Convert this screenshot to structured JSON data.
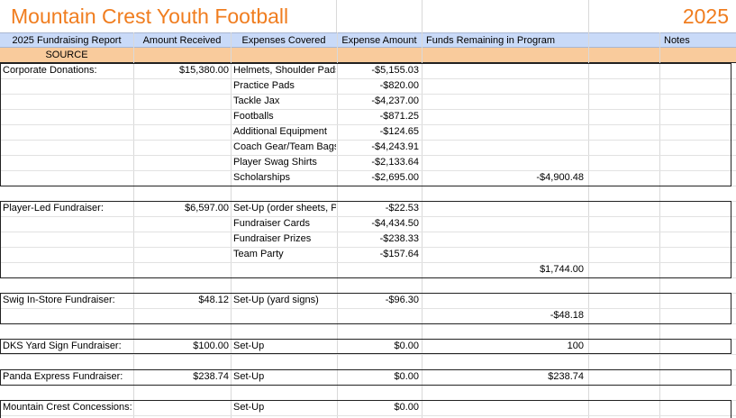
{
  "title": "Mountain Crest Youth Football",
  "year": "2025",
  "headers": {
    "report": "2025 Fundraising Report",
    "received": "Amount Received",
    "expenses": "Expenses Covered",
    "expense_amount": "Expense Amount",
    "remaining": "Funds Remaining in Program",
    "notes": "Notes"
  },
  "source_label": "SOURCE",
  "rows": [
    {
      "source": "Corporate Donations:",
      "received": "$15,380.00",
      "expense": "Helmets, Shoulder Pads",
      "amount": "-$5,155.03",
      "remaining": ""
    },
    {
      "source": "",
      "received": "",
      "expense": "Practice Pads",
      "amount": "-$820.00",
      "remaining": ""
    },
    {
      "source": "",
      "received": "",
      "expense": "Tackle Jax",
      "amount": "-$4,237.00",
      "remaining": ""
    },
    {
      "source": "",
      "received": "",
      "expense": "Footballs",
      "amount": "-$871.25",
      "remaining": ""
    },
    {
      "source": "",
      "received": "",
      "expense": "Additional Equipment",
      "amount": "-$124.65",
      "remaining": ""
    },
    {
      "source": "",
      "received": "",
      "expense": "Coach Gear/Team Bags",
      "amount": "-$4,243.91",
      "remaining": ""
    },
    {
      "source": "",
      "received": "",
      "expense": "Player Swag Shirts",
      "amount": "-$2,133.64",
      "remaining": ""
    },
    {
      "source": "",
      "received": "",
      "expense": "Scholarships",
      "amount": "-$2,695.00",
      "remaining": "-$4,900.48"
    },
    {
      "source": "",
      "received": "",
      "expense": "",
      "amount": "",
      "remaining": ""
    },
    {
      "source": "Player-Led Fundraiser:",
      "received": "$6,597.00",
      "expense": "Set-Up (order sheets, Pr",
      "amount": "-$22.53",
      "remaining": ""
    },
    {
      "source": "",
      "received": "",
      "expense": "Fundraiser Cards",
      "amount": "-$4,434.50",
      "remaining": ""
    },
    {
      "source": "",
      "received": "",
      "expense": "Fundraiser Prizes",
      "amount": "-$238.33",
      "remaining": ""
    },
    {
      "source": "",
      "received": "",
      "expense": "Team Party",
      "amount": "-$157.64",
      "remaining": ""
    },
    {
      "source": "",
      "received": "",
      "expense": "",
      "amount": "",
      "remaining": "$1,744.00"
    },
    {
      "source": "",
      "received": "",
      "expense": "",
      "amount": "",
      "remaining": ""
    },
    {
      "source": "Swig In-Store Fundraiser:",
      "received": "$48.12",
      "expense": "Set-Up (yard signs)",
      "amount": "-$96.30",
      "remaining": ""
    },
    {
      "source": "",
      "received": "",
      "expense": "",
      "amount": "",
      "remaining": "-$48.18"
    },
    {
      "source": "",
      "received": "",
      "expense": "",
      "amount": "",
      "remaining": ""
    },
    {
      "source": "DKS Yard Sign Fundraiser:",
      "received": "$100.00",
      "expense": "Set-Up",
      "amount": "$0.00",
      "remaining": "100"
    },
    {
      "source": "",
      "received": "",
      "expense": "",
      "amount": "",
      "remaining": ""
    },
    {
      "source": "Panda Express Fundraiser:",
      "received": "$238.74",
      "expense": "Set-Up",
      "amount": "$0.00",
      "remaining": "$238.74"
    },
    {
      "source": "",
      "received": "",
      "expense": "",
      "amount": "",
      "remaining": ""
    },
    {
      "source": "Mountain Crest Concessions:",
      "received": "",
      "expense": "Set-Up",
      "amount": "$0.00",
      "remaining": ""
    }
  ]
}
